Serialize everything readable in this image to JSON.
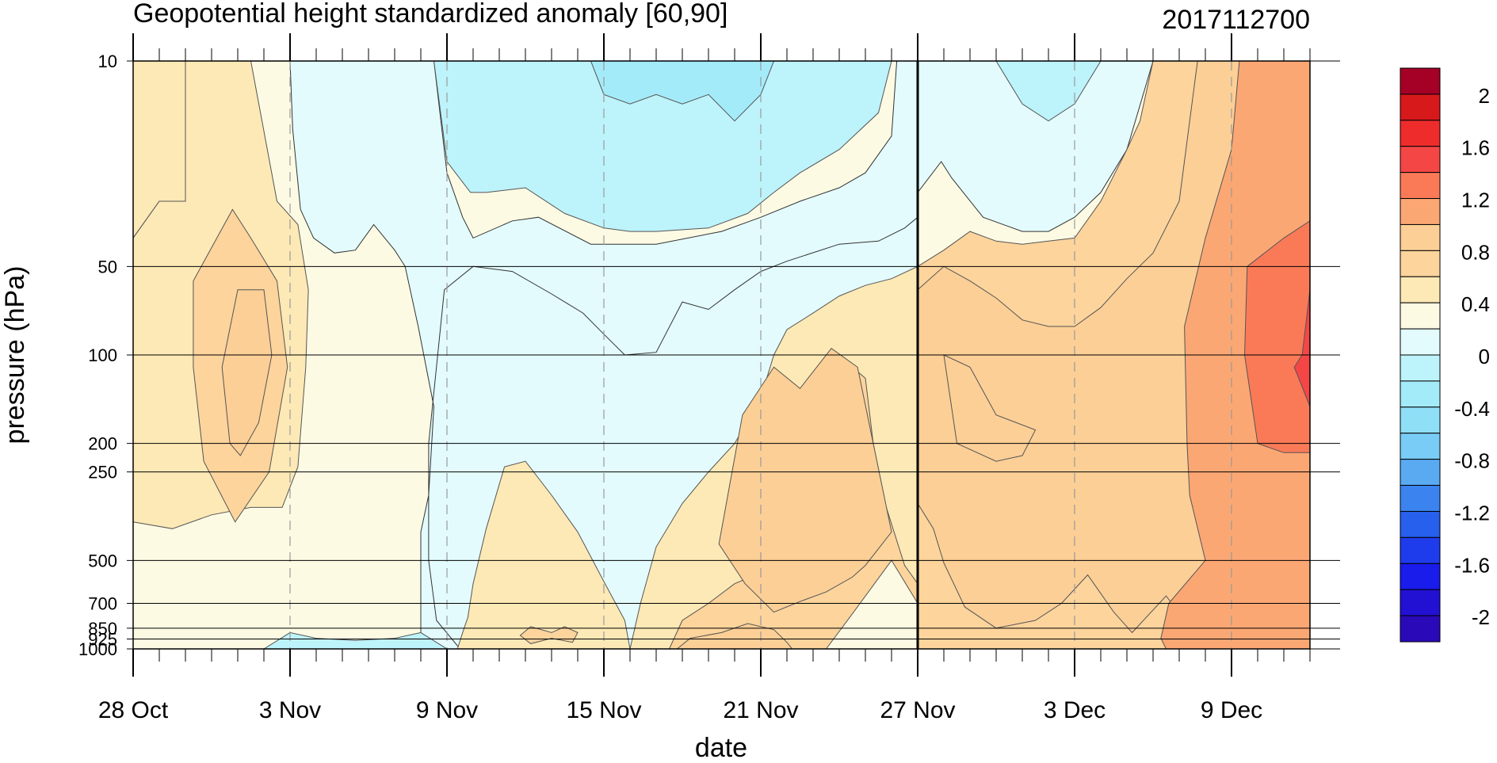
{
  "chart_data": {
    "type": "heatmap",
    "title": "Geopotential height standardized anomaly [60,90]",
    "date_label": "2017112700",
    "xlabel": "date",
    "ylabel": "pressure (hPa)",
    "x_ticks": [
      "28 Oct",
      "3 Nov",
      "9 Nov",
      "15 Nov",
      "21 Nov",
      "27 Nov",
      "3 Dec",
      "9 Dec"
    ],
    "x_tick_days": [
      0,
      6,
      12,
      18,
      24,
      30,
      36,
      42
    ],
    "x_range_days": [
      0,
      45
    ],
    "y_ticks": [
      "10",
      "50",
      "100",
      "200",
      "250",
      "500",
      "700",
      "850",
      "925",
      "1000"
    ],
    "y_tick_values": [
      10,
      50,
      100,
      200,
      250,
      500,
      700,
      850,
      925,
      1000
    ],
    "y_scale": "log",
    "y_range": [
      1000,
      10
    ],
    "current_date_marker": "27 Nov",
    "dashed_gridlines": [
      "3 Nov",
      "9 Nov",
      "15 Nov",
      "21 Nov",
      "3 Dec",
      "9 Dec"
    ],
    "colorbar": {
      "labels": [
        "2",
        "1.6",
        "1.2",
        "0.8",
        "0.4",
        "0",
        "-0.4",
        "-0.8",
        "-1.2",
        "-1.6",
        "-2"
      ],
      "label_values": [
        2,
        1.6,
        1.2,
        0.8,
        0.4,
        0,
        -0.4,
        -0.8,
        -1.2,
        -1.6,
        -2
      ],
      "levels": [
        2.2,
        2,
        1.8,
        1.6,
        1.4,
        1.2,
        1,
        0.8,
        0.6,
        0.4,
        0.2,
        0,
        -0.2,
        -0.4,
        -0.6,
        -0.8,
        -1,
        -1.2,
        -1.4,
        -1.6,
        -1.8,
        -2,
        -2.2
      ],
      "colors": [
        "#a50026",
        "#d7191c",
        "#ee2c2c",
        "#f54646",
        "#fa7a58",
        "#fba774",
        "#fccf96",
        "#fcd49c",
        "#fde9b6",
        "#fdfae4",
        "#e3fbfd",
        "#bdf3fb",
        "#a4ebfa",
        "#8fdff7",
        "#79ccf5",
        "#5aaaf2",
        "#3b84f0",
        "#2660ec",
        "#1f3cec",
        "#1a1ceb",
        "#2211d3",
        "#2a0ab8"
      ]
    },
    "regions": [
      {
        "name": "0 to 0.2",
        "value": 0.1,
        "color": "#fdfae4"
      },
      {
        "name": "0.2 to 0.4",
        "value": 0.3,
        "color": "#fde9b6"
      },
      {
        "name": "0.4 to 0.6",
        "value": 0.5,
        "color": "#fcd49c"
      },
      {
        "name": "0.6 to 0.8",
        "value": 0.7,
        "color": "#fccf96"
      },
      {
        "name": "0.8 to 1.0",
        "value": 0.9,
        "color": "#fba774"
      },
      {
        "name": "1.0 to 1.2",
        "value": 1.1,
        "color": "#fa7a58"
      },
      {
        "name": "1.2 to 1.4",
        "value": 1.3,
        "color": "#f54646"
      },
      {
        "name": "0 to -0.2",
        "value": -0.1,
        "color": "#e3fbfd"
      },
      {
        "name": "-0.2 to -0.4",
        "value": -0.3,
        "color": "#bdf3fb"
      },
      {
        "name": "-0.4 to -0.6",
        "value": -0.5,
        "color": "#a4ebfa"
      }
    ]
  }
}
